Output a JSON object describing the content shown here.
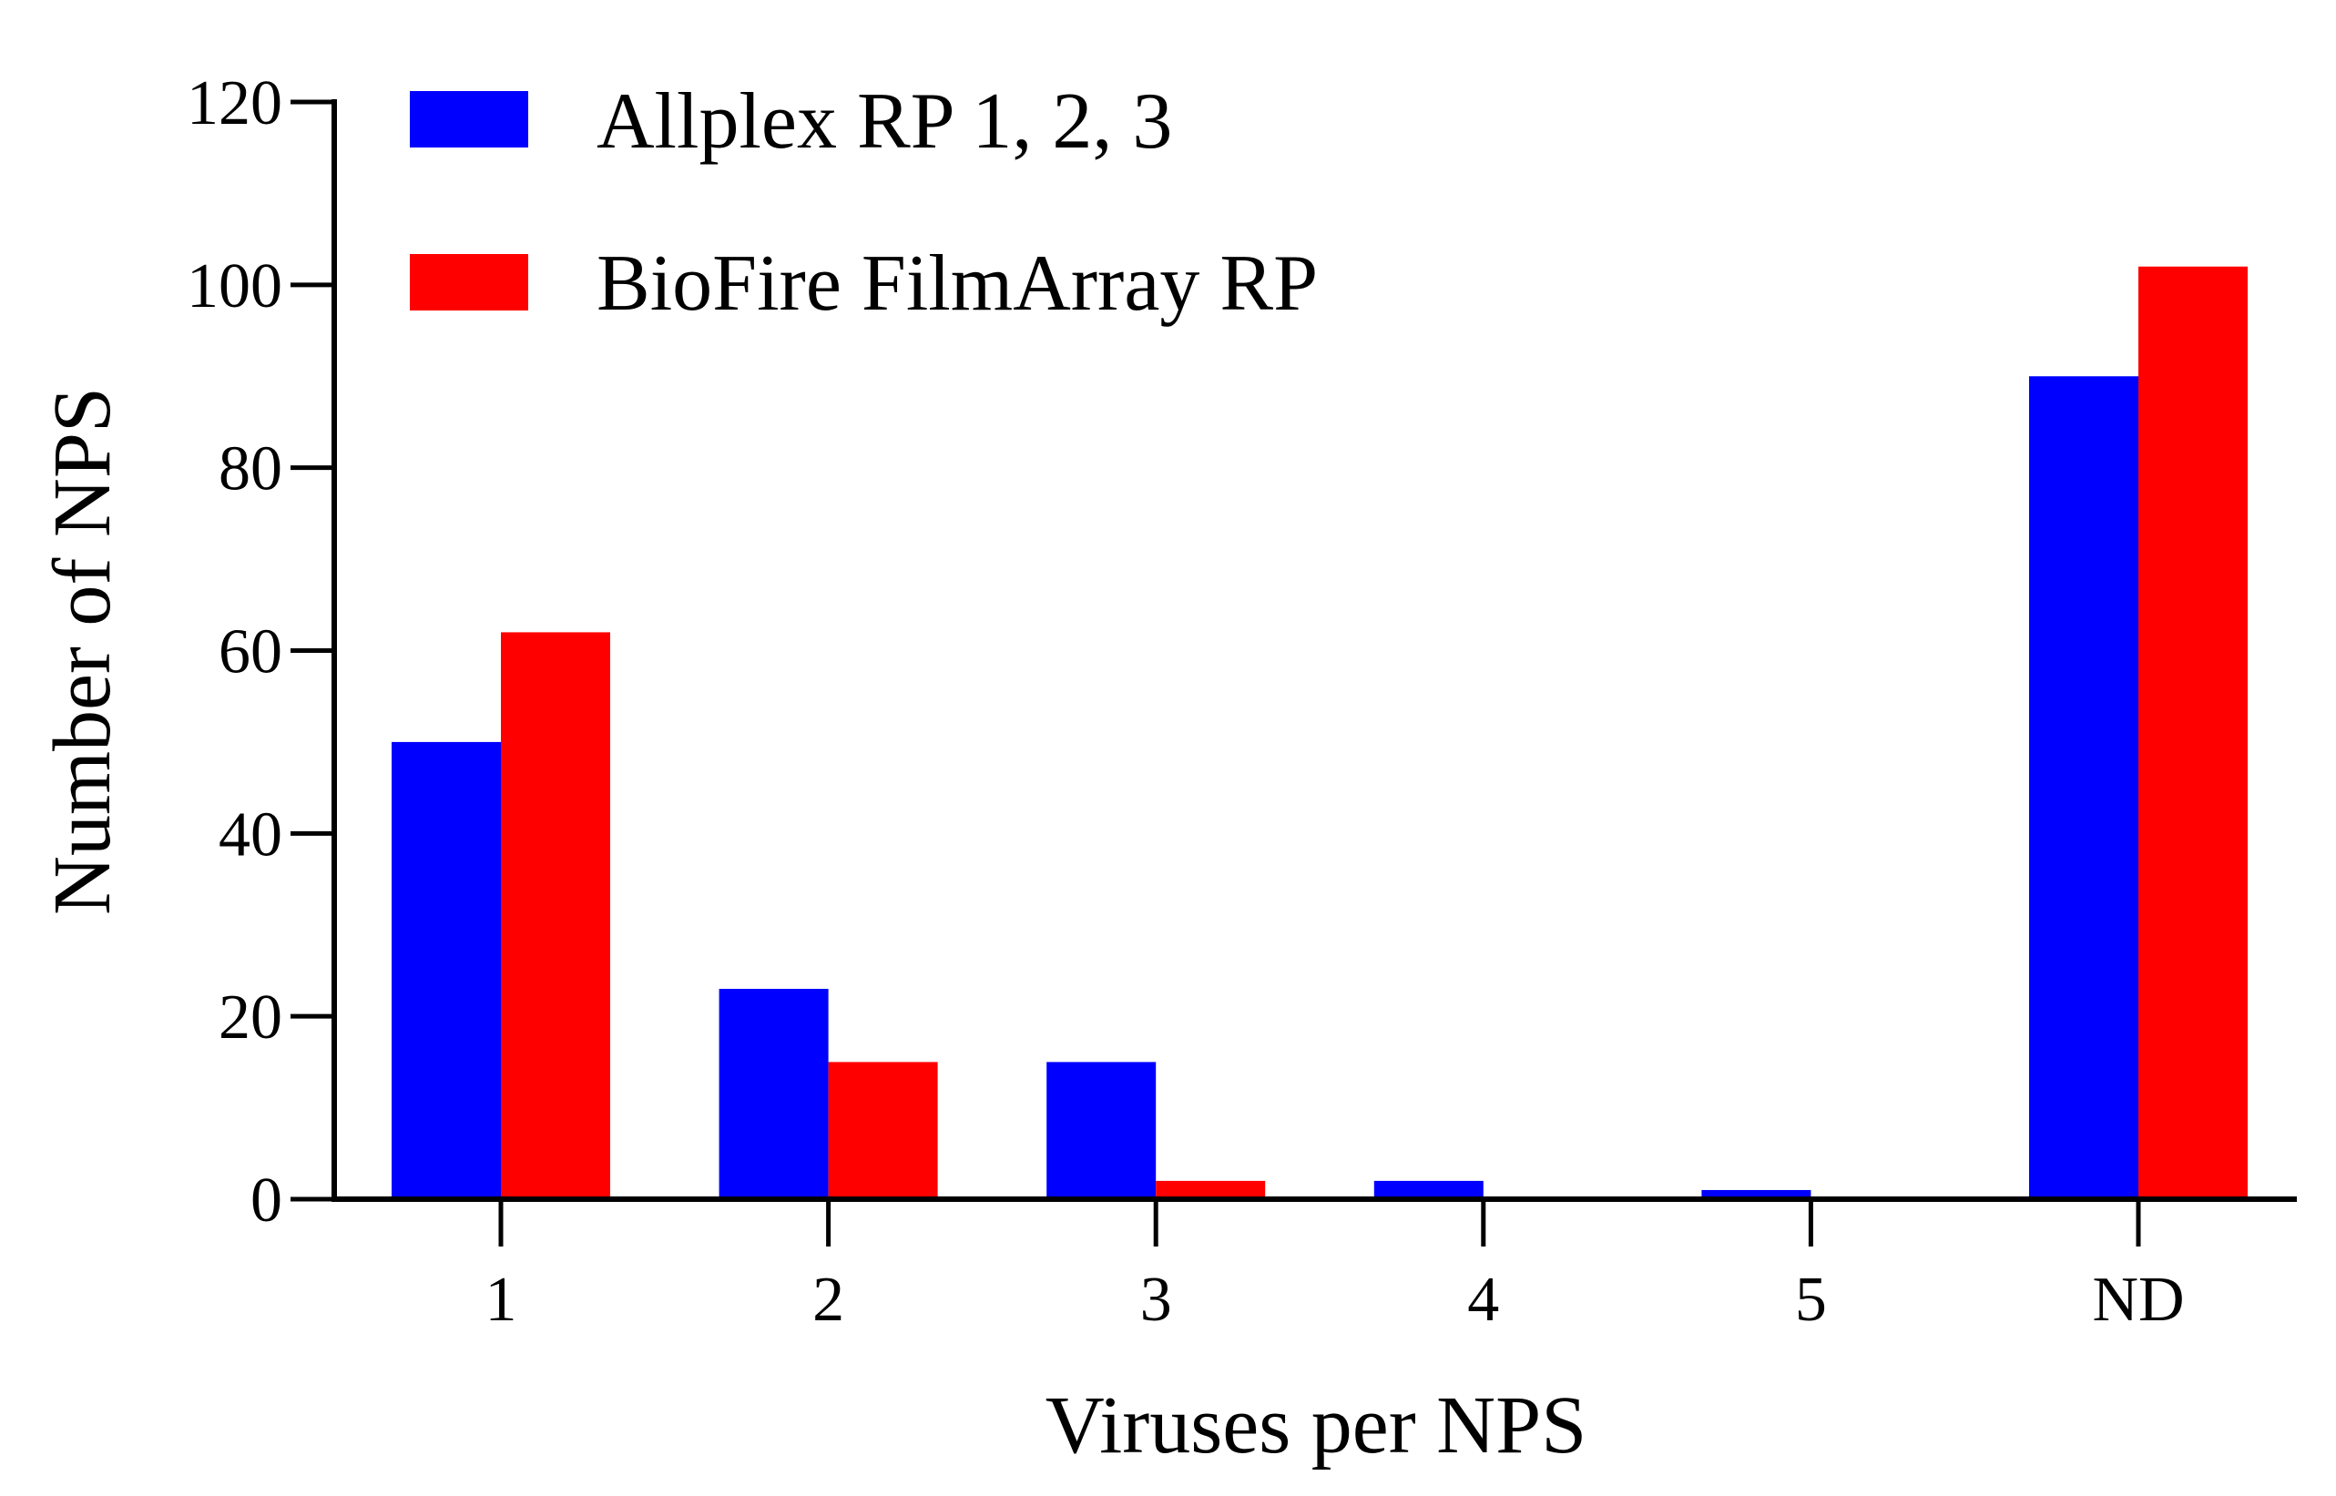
{
  "chart_data": {
    "type": "bar",
    "categories": [
      "1",
      "2",
      "3",
      "4",
      "5",
      "ND"
    ],
    "series": [
      {
        "name": "Allplex RP 1, 2, 3",
        "color": "#0000ff",
        "values": [
          50,
          23,
          15,
          2,
          1,
          90
        ]
      },
      {
        "name": "BioFire FilmArray RP",
        "color": "#ff0000",
        "values": [
          62,
          15,
          2,
          0,
          0,
          102
        ]
      }
    ],
    "xlabel": "Viruses per NPS",
    "ylabel": "Number of NPS",
    "ylim": [
      0,
      120
    ],
    "yticks": [
      "0",
      "20",
      "40",
      "60",
      "80",
      "100",
      "120"
    ],
    "grid": false,
    "legend_position": "top-left"
  }
}
